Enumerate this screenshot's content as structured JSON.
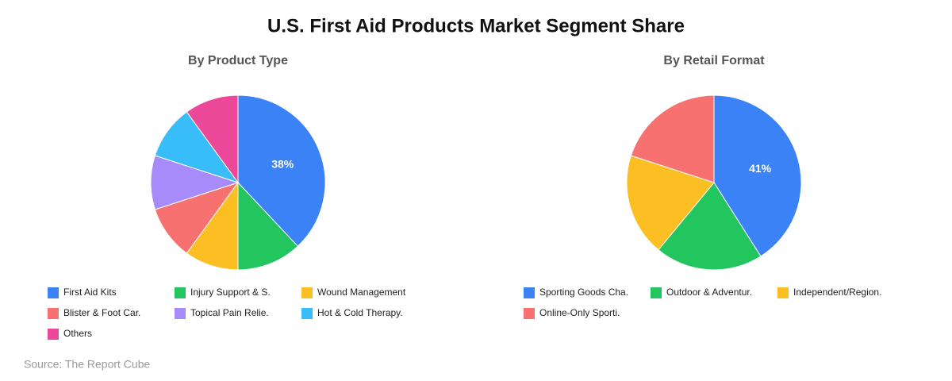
{
  "title": "U.S. First Aid Products Market Segment Share",
  "source": "Source: The Report Cube",
  "chart_data": [
    {
      "type": "pie",
      "title": "By Product Type",
      "categories": [
        "First Aid Kits",
        "Injury Support & S.",
        "Wound Management",
        "Blister & Foot Car.",
        "Topical Pain Relie.",
        "Hot & Cold Therapy.",
        "Others"
      ],
      "values": [
        38,
        12,
        10,
        10,
        10,
        10,
        10
      ],
      "value_labels": [
        "38%",
        null,
        null,
        null,
        null,
        null,
        null
      ],
      "colors": [
        "#3b82f6",
        "#22c55e",
        "#fbbf24",
        "#f87171",
        "#a78bfa",
        "#38bdf8",
        "#ec4899"
      ]
    },
    {
      "type": "pie",
      "title": "By Retail Format",
      "categories": [
        "Sporting Goods Cha.",
        "Outdoor & Adventur.",
        "Independent/Region.",
        "Online-Only Sporti."
      ],
      "values": [
        41,
        20,
        19,
        20
      ],
      "value_labels": [
        "41%",
        null,
        null,
        null
      ],
      "colors": [
        "#3b82f6",
        "#22c55e",
        "#fbbf24",
        "#f87171"
      ]
    }
  ]
}
